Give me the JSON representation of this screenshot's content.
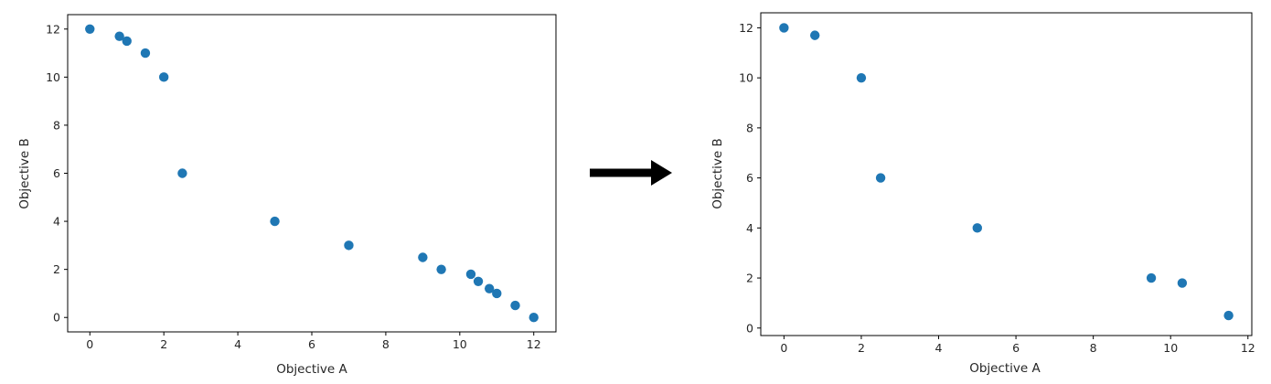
{
  "colors": {
    "point": "#1f77b4",
    "axes": "#000000",
    "text": "#262626",
    "arrow": "#000000"
  },
  "chart_data": [
    {
      "type": "scatter",
      "title": "",
      "xlabel": "Objective A",
      "ylabel": "Objective B",
      "xlim": [
        -0.6,
        12.6
      ],
      "ylim": [
        -0.6,
        12.6
      ],
      "xticks": [
        0,
        2,
        4,
        6,
        8,
        10,
        12
      ],
      "yticks": [
        0,
        2,
        4,
        6,
        8,
        10,
        12
      ],
      "grid": false,
      "legend": "none",
      "series": [
        {
          "x": [
            0,
            0.8,
            1.0,
            1.5,
            2.0,
            2.5,
            5.0,
            7.0,
            9.0,
            9.5,
            10.3,
            10.5,
            10.8,
            11.0,
            11.5,
            12.0
          ],
          "y": [
            12,
            11.7,
            11.5,
            11.0,
            10.0,
            6.0,
            4.0,
            3.0,
            2.5,
            2.0,
            1.8,
            1.5,
            1.2,
            1.0,
            0.5,
            0
          ]
        }
      ]
    },
    {
      "type": "scatter",
      "title": "",
      "xlabel": "Objective A",
      "ylabel": "Objective B",
      "xlim": [
        -0.6,
        12.1
      ],
      "ylim": [
        -0.3,
        12.6
      ],
      "xticks": [
        0,
        2,
        4,
        6,
        8,
        10,
        12
      ],
      "yticks": [
        0,
        2,
        4,
        6,
        8,
        10,
        12
      ],
      "grid": false,
      "legend": "none",
      "series": [
        {
          "x": [
            0,
            0.8,
            2.0,
            2.5,
            5.0,
            9.5,
            10.3,
            11.5
          ],
          "y": [
            12,
            11.7,
            10.0,
            6.0,
            4.0,
            2.0,
            1.8,
            0.5
          ]
        }
      ]
    }
  ]
}
